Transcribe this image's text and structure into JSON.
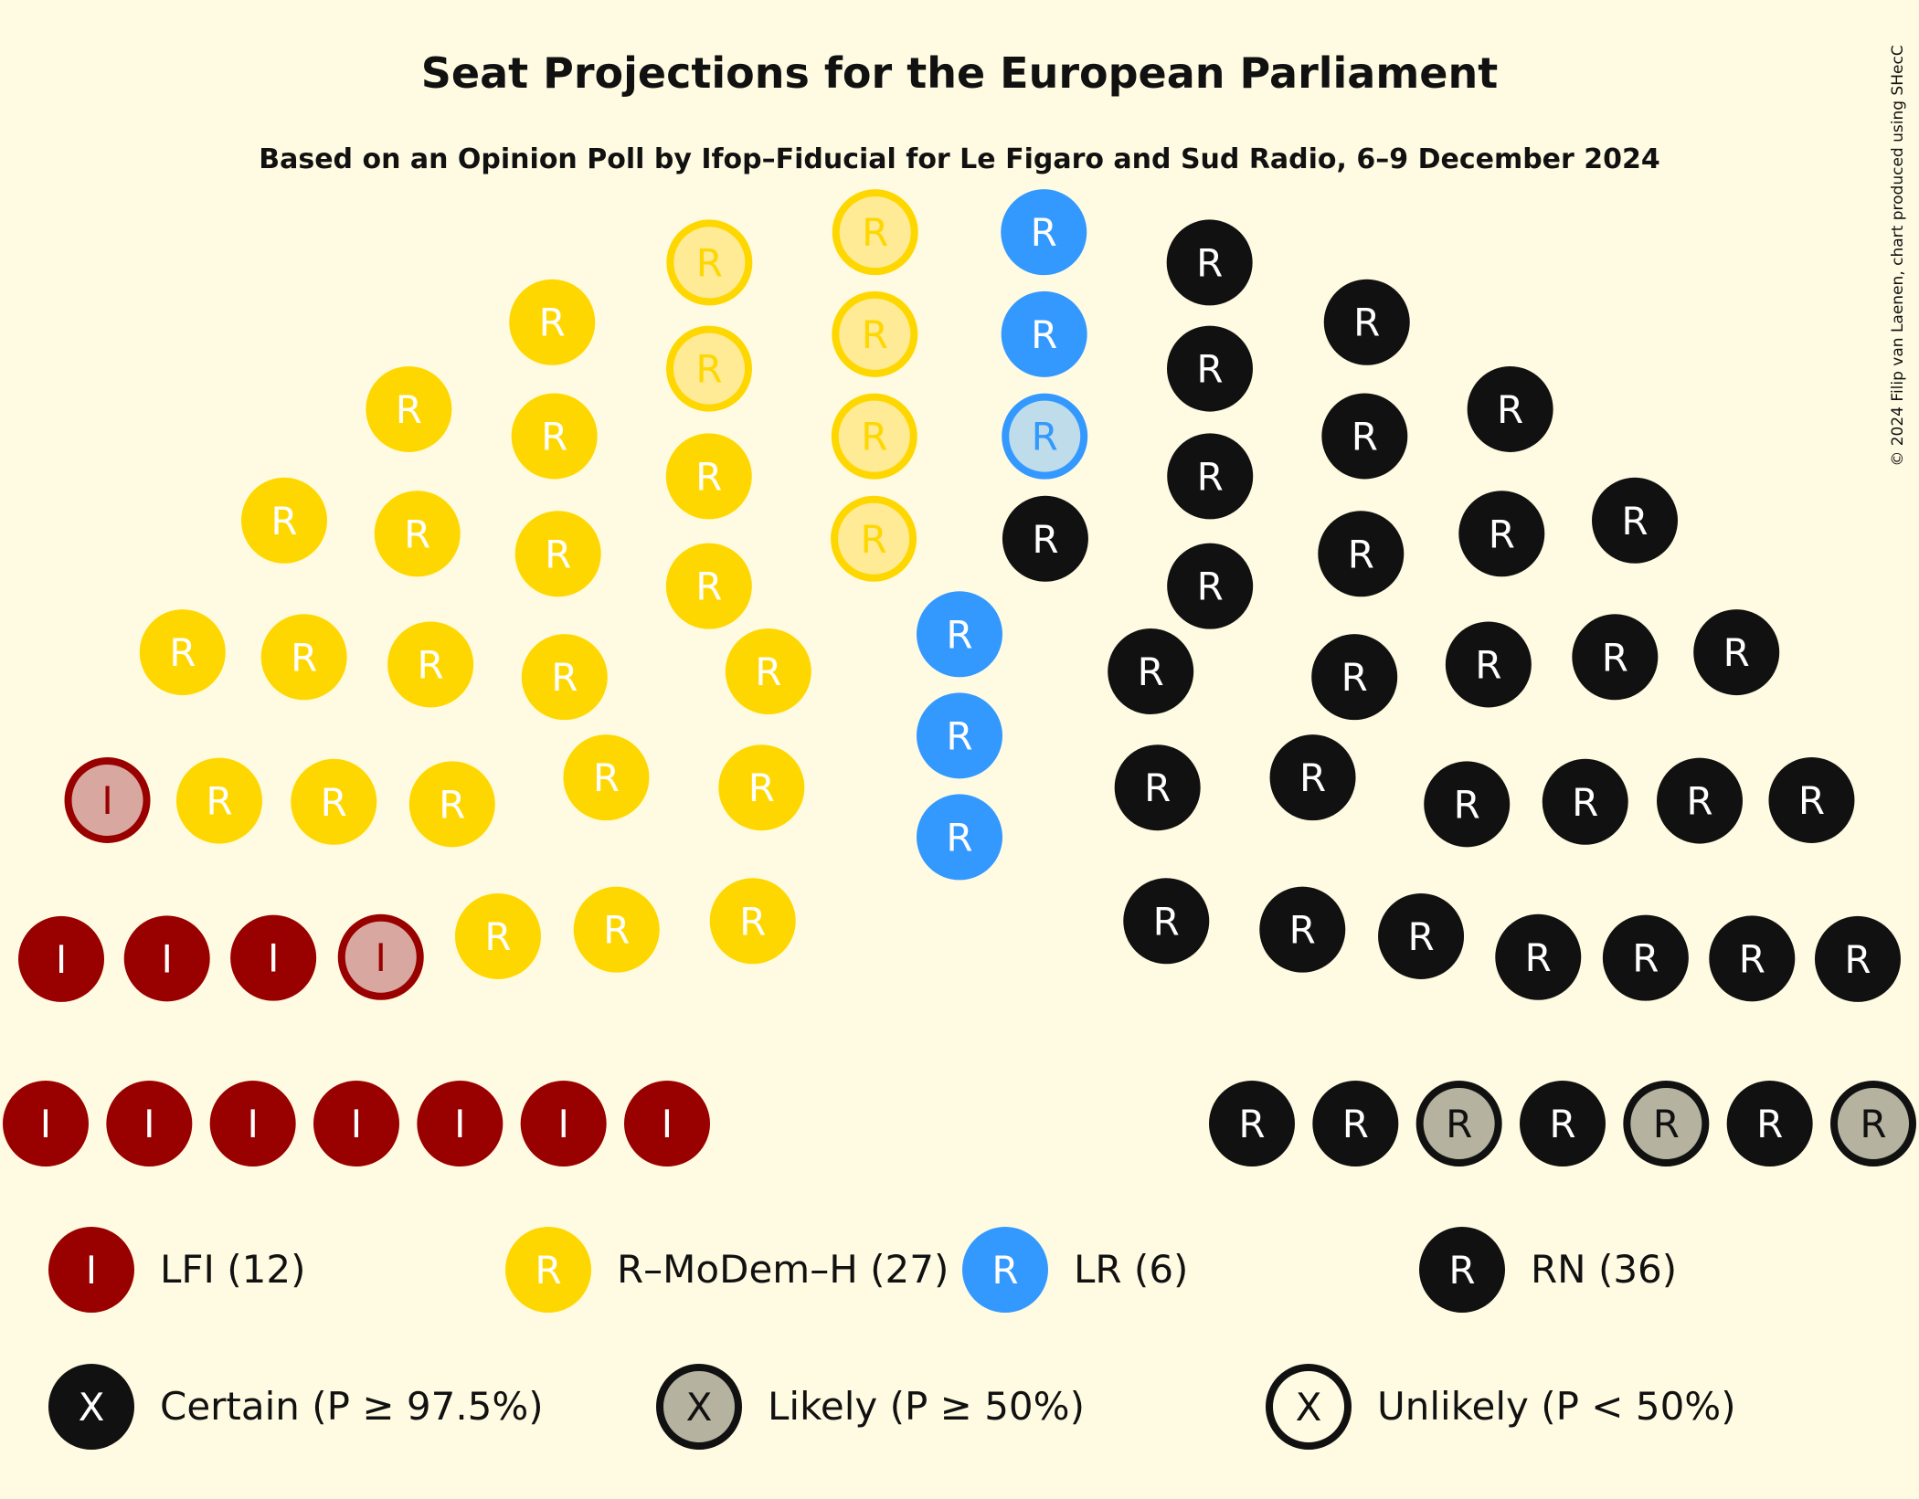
{
  "chart_data": {
    "type": "parliament",
    "title": "Seat Projections for the European Parliament",
    "subtitle": "Based on an Opinion Poll by Ifop–Fiducial for Le Figaro and Sud Radio, 6–9 December 2024",
    "copyright": "© 2024 Filip van Laenen, chart produced using SHecC",
    "parties": [
      {
        "name": "LFI",
        "seats": 12,
        "symbol": "I",
        "color": "#990000",
        "light": "#D8A8A0",
        "legend": "LFI (12)",
        "certain": 10,
        "likely": 2,
        "unlikely": 0
      },
      {
        "name": "R–MoDem–H",
        "seats": 27,
        "symbol": "R",
        "color": "#FFD700",
        "light": "#FFEB96",
        "legend": "R–MoDem–H (27)",
        "certain": 21,
        "likely": 6,
        "unlikely": 0
      },
      {
        "name": "LR",
        "seats": 6,
        "symbol": "R",
        "color": "#3399FF",
        "light": "#BFDCEB",
        "legend": "LR (6)",
        "certain": 5,
        "likely": 1,
        "unlikely": 0
      },
      {
        "name": "RN",
        "seats": 36,
        "symbol": "R",
        "color": "#111111",
        "light": "#B5B2A0",
        "legend": "RN (36)",
        "certain": 33,
        "likely": 3,
        "unlikely": 0
      }
    ],
    "certainty_legend": [
      {
        "symbol": "X",
        "label": "Certain (P ≥ 97.5%)",
        "style": "certain"
      },
      {
        "symbol": "X",
        "label": "Likely (P ≥ 50%)",
        "style": "likely"
      },
      {
        "symbol": "X",
        "label": "Unlikely (P < 50%)",
        "style": "unlikely"
      }
    ]
  }
}
